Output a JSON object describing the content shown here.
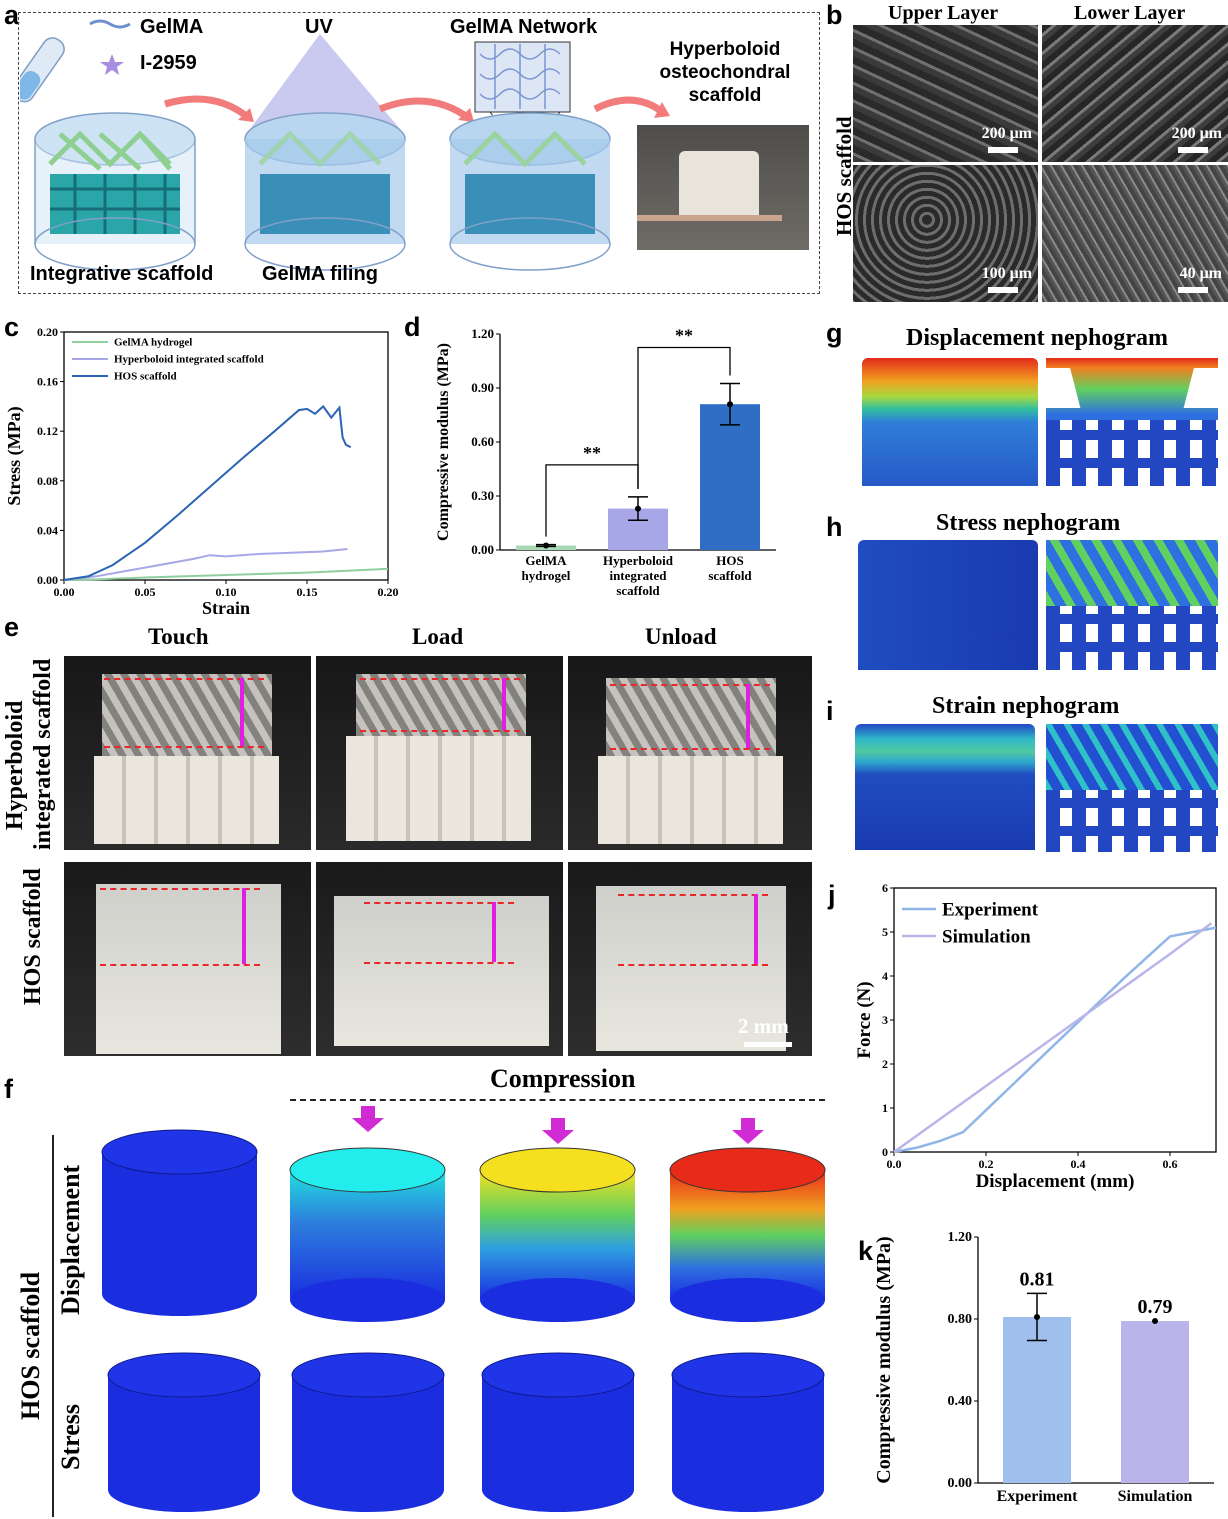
{
  "panel_a": {
    "label": "a",
    "gelma": "GelMA",
    "initiator": "I-2959",
    "uv": "UV",
    "network": "GelMA Network",
    "result_line1": "Hyperboloid",
    "result_line2": "osteochondral",
    "result_line3": "scaffold",
    "caption_left": "Integrative scaffold",
    "caption_mid": "GelMA filing"
  },
  "panel_b": {
    "label": "b",
    "upper": "Upper Layer",
    "lower": "Lower Layer",
    "side": "HOS scaffold",
    "scale_tl": "200 μm",
    "scale_tr": "200 μm",
    "scale_bl": "100 μm",
    "scale_br": "40 μm"
  },
  "panel_c": {
    "label": "c",
    "chart_data": {
      "type": "line",
      "xlabel": "Strain",
      "ylabel": "Stress (MPa)",
      "xlim": [
        0,
        0.2
      ],
      "ylim": [
        0,
        0.2
      ],
      "xticks": [
        "0.00",
        "0.05",
        "0.10",
        "0.15",
        "0.20"
      ],
      "yticks": [
        "0.00",
        "0.04",
        "0.08",
        "0.12",
        "0.16",
        "0.20"
      ],
      "legend_position": "top-left",
      "series": [
        {
          "name": "GelMA hydrogel",
          "color": "#8fcf9e",
          "x": [
            0,
            0.02,
            0.05,
            0.1,
            0.15,
            0.2
          ],
          "y": [
            0,
            0.0005,
            0.002,
            0.004,
            0.006,
            0.009
          ]
        },
        {
          "name": "Hyperboloid integrated scaffold",
          "color": "#a7a6e6",
          "x": [
            0,
            0.02,
            0.05,
            0.08,
            0.09,
            0.1,
            0.12,
            0.14,
            0.16,
            0.175
          ],
          "y": [
            0,
            0.003,
            0.01,
            0.017,
            0.02,
            0.019,
            0.021,
            0.022,
            0.023,
            0.025
          ]
        },
        {
          "name": "HOS scaffold",
          "color": "#2b63b5",
          "x": [
            0,
            0.015,
            0.03,
            0.05,
            0.07,
            0.09,
            0.11,
            0.13,
            0.145,
            0.15,
            0.155,
            0.16,
            0.165,
            0.17,
            0.172,
            0.174,
            0.177
          ],
          "y": [
            0,
            0.003,
            0.012,
            0.03,
            0.052,
            0.075,
            0.098,
            0.12,
            0.137,
            0.138,
            0.134,
            0.14,
            0.131,
            0.139,
            0.115,
            0.109,
            0.107
          ]
        }
      ]
    }
  },
  "panel_d": {
    "label": "d",
    "chart_data": {
      "type": "bar",
      "ylabel": "Compressive modulus (MPa)",
      "ylim": [
        0,
        1.2
      ],
      "yticks": [
        "0.00",
        "0.30",
        "0.60",
        "0.90",
        "1.20"
      ],
      "categories": [
        "GelMA hydrogel",
        "Hyperboloid integrated scaffold",
        "HOS scaffold"
      ],
      "category_lines": [
        [
          "GelMA",
          "hydrogel"
        ],
        [
          "Hyperboloid",
          "integrated",
          "scaffold"
        ],
        [
          "HOS",
          "scaffold"
        ]
      ],
      "values": [
        0.025,
        0.23,
        0.81
      ],
      "errors": [
        0.005,
        0.065,
        0.115
      ],
      "colors": [
        "#a8d8b4",
        "#a7a6e6",
        "#2f6ec4"
      ],
      "significance": [
        {
          "from": 0,
          "to": 1,
          "label": "**"
        },
        {
          "from": 1,
          "to": 2,
          "label": "**"
        }
      ]
    }
  },
  "panel_e": {
    "label": "e",
    "col_touch": "Touch",
    "col_load": "Load",
    "col_unload": "Unload",
    "row1_line1": "Hyperboloid",
    "row1_line2": "integrated scaffold",
    "row2": "HOS scaffold",
    "scale": "2 mm"
  },
  "panel_f": {
    "label": "f",
    "compression": "Compression",
    "row_disp": "Displacement",
    "row_stress": "Stress",
    "side": "HOS scaffold"
  },
  "panel_g": {
    "label": "g",
    "title": "Displacement nephogram"
  },
  "panel_h": {
    "label": "h",
    "title": "Stress nephogram"
  },
  "panel_i": {
    "label": "i",
    "title": "Strain nephogram"
  },
  "panel_j": {
    "label": "j",
    "chart_data": {
      "type": "line",
      "xlabel": "Displacement (mm)",
      "ylabel": "Force (N)",
      "xlim": [
        0,
        0.7
      ],
      "ylim": [
        0,
        6
      ],
      "xticks": [
        "0.0",
        "0.2",
        "0.4",
        "0.6"
      ],
      "yticks": [
        "0",
        "1",
        "2",
        "3",
        "4",
        "5",
        "6"
      ],
      "legend_position": "top-left",
      "series": [
        {
          "name": "Experiment",
          "color": "#8fb6e6",
          "x": [
            0,
            0.05,
            0.1,
            0.15,
            0.2,
            0.3,
            0.4,
            0.5,
            0.6,
            0.7
          ],
          "y": [
            0,
            0.1,
            0.25,
            0.45,
            0.95,
            1.95,
            2.95,
            3.95,
            4.9,
            5.1
          ]
        },
        {
          "name": "Simulation",
          "color": "#b9b4ea",
          "x": [
            0,
            0.1,
            0.2,
            0.3,
            0.4,
            0.5,
            0.6,
            0.69
          ],
          "y": [
            0,
            0.75,
            1.5,
            2.25,
            3.0,
            3.75,
            4.5,
            5.2
          ]
        }
      ]
    }
  },
  "panel_k": {
    "label": "k",
    "chart_data": {
      "type": "bar",
      "ylabel": "Compressive modulus (MPa)",
      "ylim": [
        0,
        1.2
      ],
      "yticks": [
        "0.00",
        "0.40",
        "0.80",
        "1.20"
      ],
      "categories": [
        "Experiment",
        "Simulation"
      ],
      "values": [
        0.81,
        0.79
      ],
      "value_labels": [
        "0.81",
        "0.79"
      ],
      "errors": [
        0.115,
        0
      ],
      "colors": [
        "#9fc0ec",
        "#b9b4ea"
      ]
    }
  }
}
